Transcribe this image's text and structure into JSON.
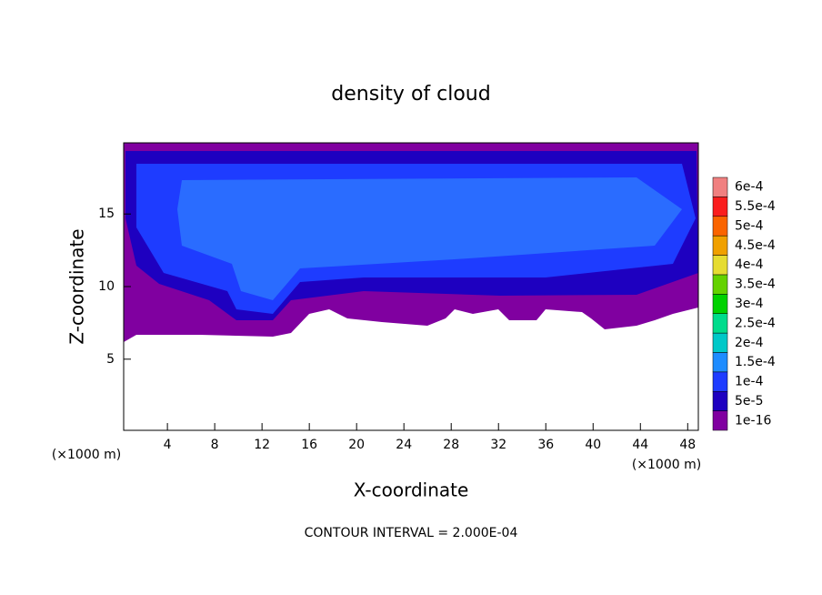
{
  "chart_data": {
    "type": "contour",
    "title": "density of cloud",
    "x_label": "X-coordinate",
    "y_label": "Z-coordinate",
    "axis_unit": "(×1000 m)",
    "annotation": "CONTOUR INTERVAL = 2.000E-04",
    "xlim": [
      0.3,
      48.9
    ],
    "ylim": [
      0.1,
      19.9
    ],
    "xticks": [
      4,
      8,
      12,
      16,
      20,
      24,
      28,
      32,
      36,
      40,
      44,
      48
    ],
    "yticks": [
      5,
      10,
      15
    ],
    "colorbar": {
      "levels": [
        {
          "value": 1e-16,
          "label": "1e-16"
        },
        {
          "value": 5e-05,
          "label": "5e-5"
        },
        {
          "value": 0.0001,
          "label": "1e-4"
        },
        {
          "value": 0.00015,
          "label": "1.5e-4"
        },
        {
          "value": 0.0002,
          "label": "2e-4"
        },
        {
          "value": 0.00025,
          "label": "2.5e-4"
        },
        {
          "value": 0.0003,
          "label": "3e-4"
        },
        {
          "value": 0.00035,
          "label": "3.5e-4"
        },
        {
          "value": 0.0004,
          "label": "4e-4"
        },
        {
          "value": 0.00045,
          "label": "4.5e-4"
        },
        {
          "value": 0.0005,
          "label": "5e-4"
        },
        {
          "value": 0.00055,
          "label": "5.5e-4"
        },
        {
          "value": 0.0006,
          "label": "6e-4"
        }
      ],
      "colors": [
        "#8000a0",
        "#1e00c0",
        "#1e3cff",
        "#1e8cff",
        "#00c8c8",
        "#00dc8c",
        "#00d200",
        "#64d200",
        "#e6dc32",
        "#f0a000",
        "#fa6400",
        "#fa1e1e",
        "#f08080"
      ]
    }
  }
}
